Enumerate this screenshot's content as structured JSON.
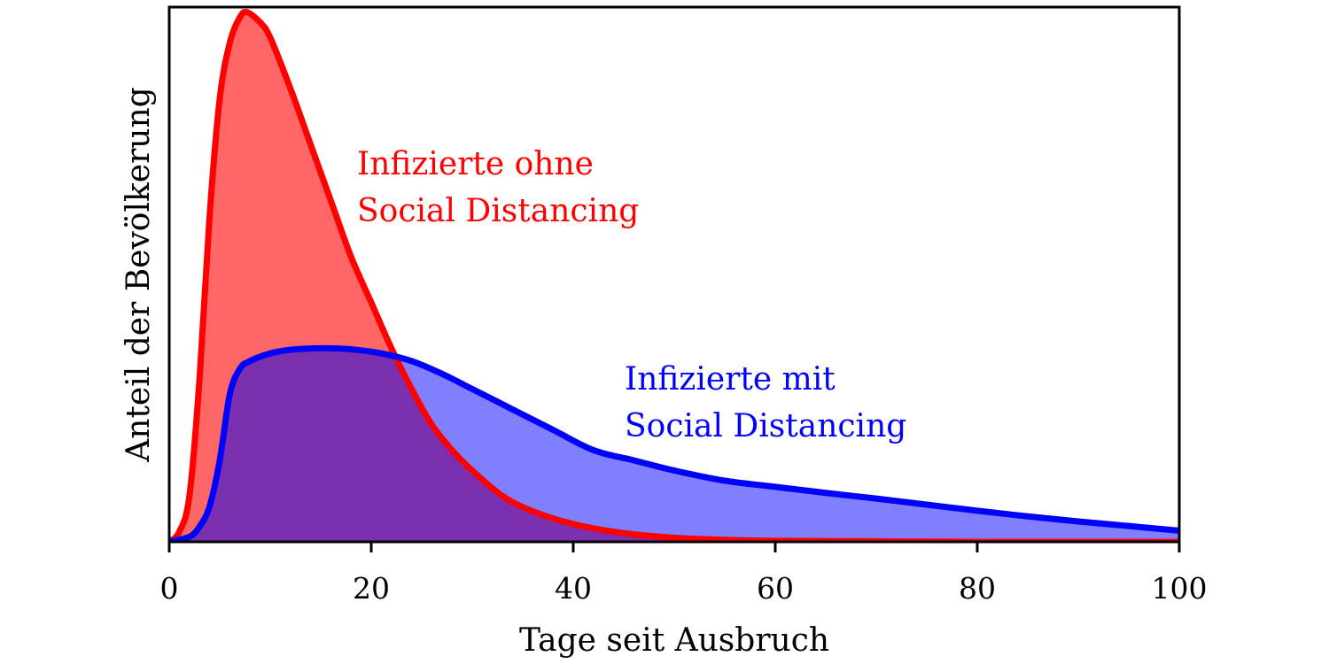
{
  "chart_data": {
    "type": "area",
    "xlabel": "Tage seit Ausbruch",
    "ylabel": "Anteil der Bevölkerung",
    "xlim": [
      0,
      100
    ],
    "ylim": [
      0,
      1.05
    ],
    "x_ticks": [
      "0",
      "20",
      "40",
      "60",
      "80",
      "100"
    ],
    "y_ticks_shown": false,
    "grid": false,
    "series": [
      {
        "color": "#ff0000",
        "fill": "#ff6666",
        "x": [
          0,
          1,
          2,
          3,
          4,
          5,
          6,
          7,
          7.7,
          9,
          10,
          12,
          14,
          16,
          18,
          20,
          22,
          24,
          26,
          28,
          30,
          33,
          36,
          40,
          45,
          50,
          55,
          60,
          70,
          80,
          90,
          100
        ],
        "y": [
          0.0,
          0.02,
          0.09,
          0.32,
          0.64,
          0.87,
          0.98,
          1.03,
          1.04,
          1.02,
          0.99,
          0.89,
          0.78,
          0.67,
          0.56,
          0.47,
          0.38,
          0.3,
          0.23,
          0.18,
          0.14,
          0.09,
          0.06,
          0.035,
          0.017,
          0.008,
          0.004,
          0.002,
          0.001,
          0.0,
          0.0,
          0.0
        ]
      },
      {
        "color": "#0000ff",
        "fill": "#8080ff",
        "x": [
          0,
          2,
          3,
          4,
          5,
          6,
          7,
          8,
          10,
          12,
          15,
          18,
          21,
          24,
          27,
          30,
          34,
          38,
          42,
          46,
          50,
          55,
          60,
          65,
          70,
          75,
          80,
          85,
          90,
          95,
          100
        ],
        "y": [
          0.0,
          0.01,
          0.03,
          0.07,
          0.16,
          0.29,
          0.34,
          0.355,
          0.37,
          0.377,
          0.38,
          0.378,
          0.37,
          0.355,
          0.33,
          0.3,
          0.26,
          0.22,
          0.18,
          0.16,
          0.14,
          0.12,
          0.108,
          0.096,
          0.085,
          0.073,
          0.061,
          0.05,
          0.04,
          0.031,
          0.022
        ]
      }
    ],
    "overlap_fill": "#7b30b0",
    "annotations": [
      {
        "lines": [
          "Infizierte ohne",
          "Social Distancing"
        ],
        "color": "#ff0000"
      },
      {
        "lines": [
          "Infizierte mit",
          "Social Distancing"
        ],
        "color": "#0000ff"
      }
    ]
  }
}
